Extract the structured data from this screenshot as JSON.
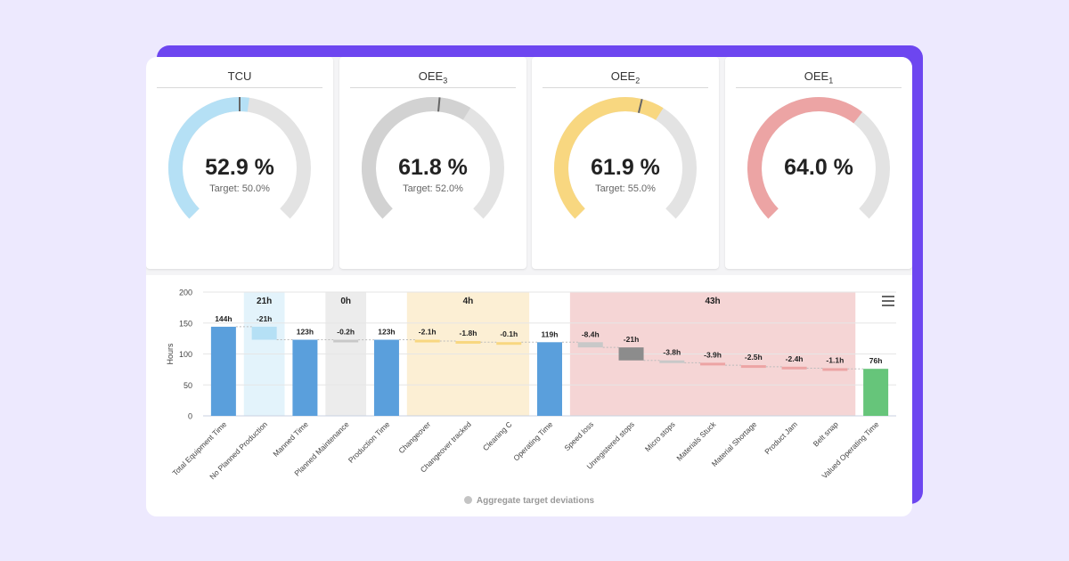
{
  "gauges": [
    {
      "id": "tcu",
      "title_main": "TCU",
      "title_sub": "",
      "value_label": "52.9 %",
      "value": 52.9,
      "target_label": "Target: 50.0%",
      "target": 50.0,
      "color": "#b5e0f5",
      "marker": true
    },
    {
      "id": "oee3",
      "title_main": "OEE",
      "title_sub": "3",
      "value_label": "61.8 %",
      "value": 61.8,
      "target_label": "Target: 52.0%",
      "target": 52.0,
      "color": "#d2d2d2",
      "marker": true
    },
    {
      "id": "oee2",
      "title_main": "OEE",
      "title_sub": "2",
      "value_label": "61.9 %",
      "value": 61.9,
      "target_label": "Target: 55.0%",
      "target": 55.0,
      "color": "#f8d780",
      "marker": true
    },
    {
      "id": "oee1",
      "title_main": "OEE",
      "title_sub": "1",
      "value_label": "64.0 %",
      "value": 64.0,
      "target_label": "",
      "target": null,
      "color": "#eca4a4",
      "marker": false
    }
  ],
  "chart_data": {
    "type": "bar",
    "subtype": "waterfall",
    "ylabel": "Hours",
    "ylim": [
      0,
      200
    ],
    "yticks": [
      0,
      50,
      100,
      150,
      200
    ],
    "grid": true,
    "categories": [
      "Total Equipment Time",
      "No Planned Production",
      "Manned Time",
      "Planned Maintenance",
      "Production Time",
      "Changeover",
      "Changeover tracked",
      "Cleaning C",
      "Operating Time",
      "Speed loss",
      "Unregistered stops",
      "Micro stops",
      "Materials Stuck",
      "Material Shortage",
      "Product Jam",
      "Belt snap",
      "Valued Operating Time"
    ],
    "bars": [
      {
        "kind": "total",
        "low": 0,
        "high": 144,
        "label": "144h",
        "color": "#5a9fdc"
      },
      {
        "kind": "delta",
        "low": 123,
        "high": 144,
        "label": "-21h",
        "color": "#b5e0f5"
      },
      {
        "kind": "total",
        "low": 0,
        "high": 123,
        "label": "123h",
        "color": "#5a9fdc"
      },
      {
        "kind": "delta",
        "low": 122.8,
        "high": 123,
        "label": "-0.2h",
        "color": "#c8c8c8"
      },
      {
        "kind": "total",
        "low": 0,
        "high": 123,
        "label": "123h",
        "color": "#5a9fdc"
      },
      {
        "kind": "delta",
        "low": 120.9,
        "high": 123,
        "label": "-2.1h",
        "color": "#f8d780"
      },
      {
        "kind": "delta",
        "low": 119.1,
        "high": 120.9,
        "label": "-1.8h",
        "color": "#f8d780"
      },
      {
        "kind": "delta",
        "low": 119,
        "high": 119.1,
        "label": "-0.1h",
        "color": "#f8d780"
      },
      {
        "kind": "total",
        "low": 0,
        "high": 119,
        "label": "119h",
        "color": "#5a9fdc"
      },
      {
        "kind": "delta",
        "low": 110.6,
        "high": 119,
        "label": "-8.4h",
        "color": "#c8c8c8"
      },
      {
        "kind": "delta",
        "low": 89.6,
        "high": 110.6,
        "label": "-21h",
        "color": "#8c8c8c"
      },
      {
        "kind": "delta",
        "low": 85.8,
        "high": 89.6,
        "label": "-3.8h",
        "color": "#c8c8c8"
      },
      {
        "kind": "delta",
        "low": 81.9,
        "high": 85.8,
        "label": "-3.9h",
        "color": "#eca4a4"
      },
      {
        "kind": "delta",
        "low": 79.4,
        "high": 81.9,
        "label": "-2.5h",
        "color": "#eca4a4"
      },
      {
        "kind": "delta",
        "low": 77,
        "high": 79.4,
        "label": "-2.4h",
        "color": "#eca4a4"
      },
      {
        "kind": "delta",
        "low": 75.9,
        "high": 77,
        "label": "-1.1h",
        "color": "#eca4a4"
      },
      {
        "kind": "total",
        "low": 0,
        "high": 76,
        "label": "76h",
        "color": "#66c57a"
      }
    ],
    "bands": [
      {
        "from": 1,
        "to": 1,
        "label": "21h",
        "color": "#e3f3fb"
      },
      {
        "from": 3,
        "to": 3,
        "label": "0h",
        "color": "#ececec"
      },
      {
        "from": 5,
        "to": 7,
        "label": "4h",
        "color": "#fcefd4"
      },
      {
        "from": 9,
        "to": 15,
        "label": "43h",
        "color": "#f5d5d5"
      }
    ],
    "legend": [
      {
        "name": "Aggregate target deviations",
        "color": "#c4c4c4"
      }
    ],
    "legend_position": "bottom"
  }
}
